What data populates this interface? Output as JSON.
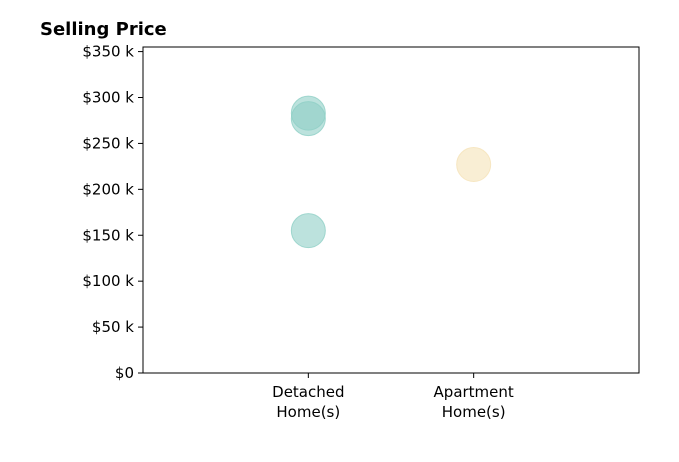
{
  "chart_data": {
    "type": "scatter",
    "title": "Selling Price",
    "xlabel": "",
    "ylabel": "",
    "categories": [
      "Detached\nHome(s)",
      "Apartment\nHome(s)"
    ],
    "xlim": [
      -1,
      2
    ],
    "ylim": [
      0,
      355000
    ],
    "yticks": [
      0,
      50000,
      100000,
      150000,
      200000,
      250000,
      300000,
      350000
    ],
    "ytick_labels": [
      "$0",
      "$50 k",
      "$100 k",
      "$150 k",
      "$200 k",
      "$250 k",
      "$300 k",
      "$350 k"
    ],
    "grid": false,
    "points": [
      {
        "category": "Detached\nHome(s)",
        "value": 283000,
        "color": "#8fcfc6"
      },
      {
        "category": "Detached\nHome(s)",
        "value": 277000,
        "color": "#8fcfc6"
      },
      {
        "category": "Detached\nHome(s)",
        "value": 155000,
        "color": "#8fcfc6"
      },
      {
        "category": "Apartment\nHome(s)",
        "value": 227000,
        "color": "#f5e2b8"
      }
    ]
  }
}
